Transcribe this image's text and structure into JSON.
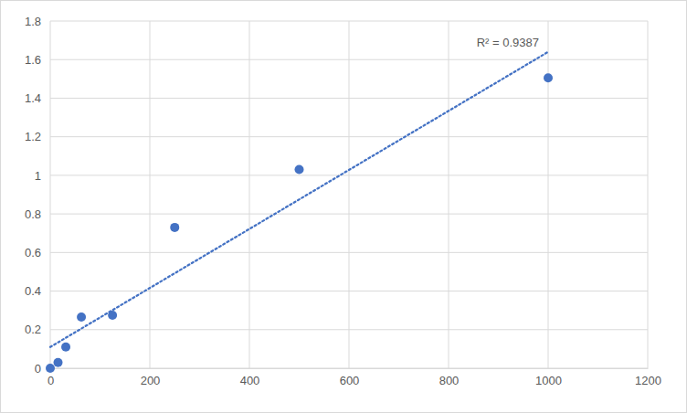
{
  "chart_data": {
    "type": "scatter",
    "series": [
      {
        "type": "scatter",
        "x": [
          0,
          15.6,
          31.25,
          62.5,
          125,
          250,
          500,
          1000
        ],
        "values": [
          0,
          0.03,
          0.11,
          0.265,
          0.275,
          0.73,
          1.03,
          1.505
        ],
        "color": "#4472c4",
        "marker": "circle"
      },
      {
        "type": "line",
        "x": [
          0,
          1000
        ],
        "values": [
          0.11,
          1.64
        ],
        "color": "#4472c4",
        "line_style": "dotted"
      }
    ],
    "annotations": [
      "R² = 0.9387"
    ],
    "xlim": [
      0,
      1200
    ],
    "xticks": [
      0,
      200,
      400,
      600,
      800,
      1000,
      1200
    ],
    "ylim": [
      0,
      1.8
    ],
    "yticks": [
      0,
      0.2,
      0.4,
      0.6,
      0.8,
      1,
      1.2,
      1.4,
      1.6,
      1.8
    ],
    "grid": true
  }
}
